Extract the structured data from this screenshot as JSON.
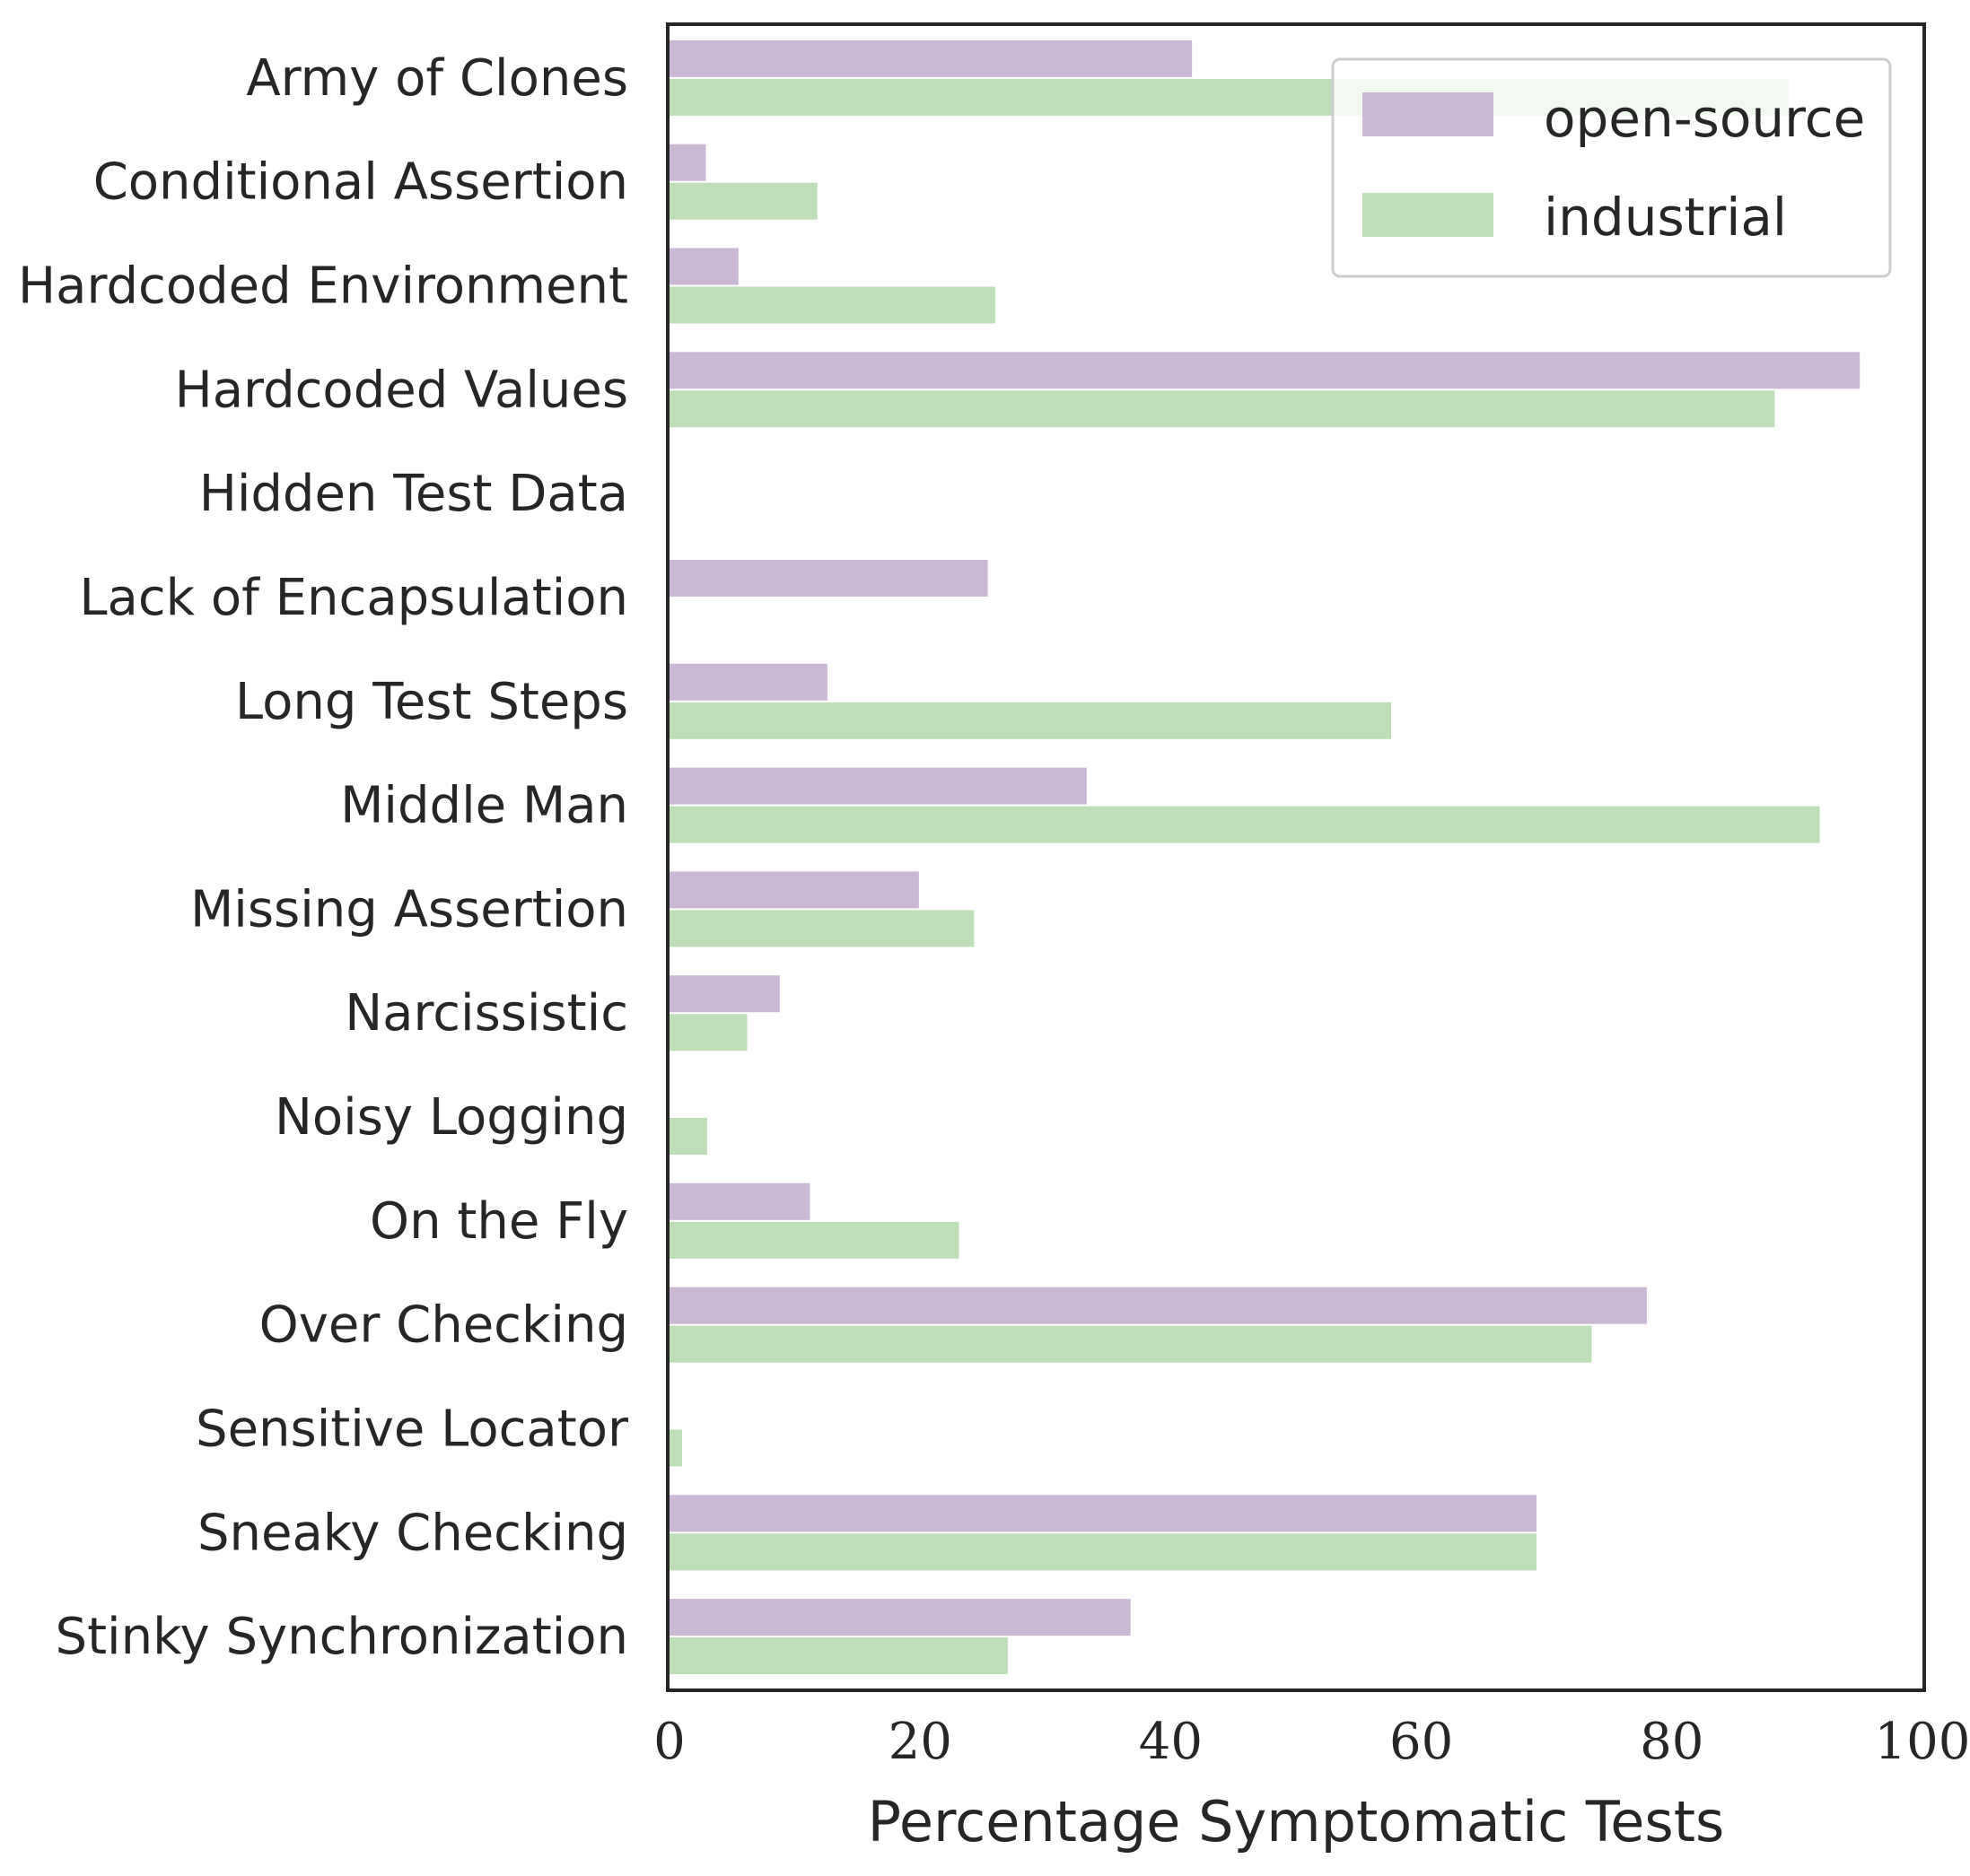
{
  "chart_data": {
    "type": "bar",
    "orientation": "horizontal",
    "categories": [
      "Army of Clones",
      "Conditional Assertion",
      "Hardcoded Environment",
      "Hardcoded Values",
      "Hidden Test Data",
      "Lack of Encapsulation",
      "Long Test Steps",
      "Middle Man",
      "Missing Assertion",
      "Narcissistic",
      "Noisy Logging",
      "On the Fly",
      "Over Checking",
      "Sensitive Locator",
      "Sneaky Checking",
      "Stinky Synchronization"
    ],
    "series": [
      {
        "name": "open-source",
        "color": "#cbb8d5",
        "values": [
          41.7,
          2.9,
          5.5,
          95.0,
          0,
          25.4,
          12.6,
          33.3,
          19.9,
          8.8,
          0,
          11.2,
          78.0,
          0,
          69.2,
          36.8
        ]
      },
      {
        "name": "industrial",
        "color": "#bddeb7",
        "values": [
          89.3,
          11.8,
          26.0,
          88.2,
          0,
          0,
          57.6,
          91.8,
          24.3,
          6.2,
          3.0,
          23.1,
          73.6,
          1.0,
          69.2,
          27.0
        ]
      }
    ],
    "xlabel": "Percentage Symptomatic Tests",
    "ylabel": "",
    "xlim": [
      0,
      100
    ],
    "xticks": [
      "0",
      "20",
      "40",
      "60",
      "80",
      "100"
    ],
    "legend": {
      "placement": "top-right"
    },
    "grid": false
  }
}
